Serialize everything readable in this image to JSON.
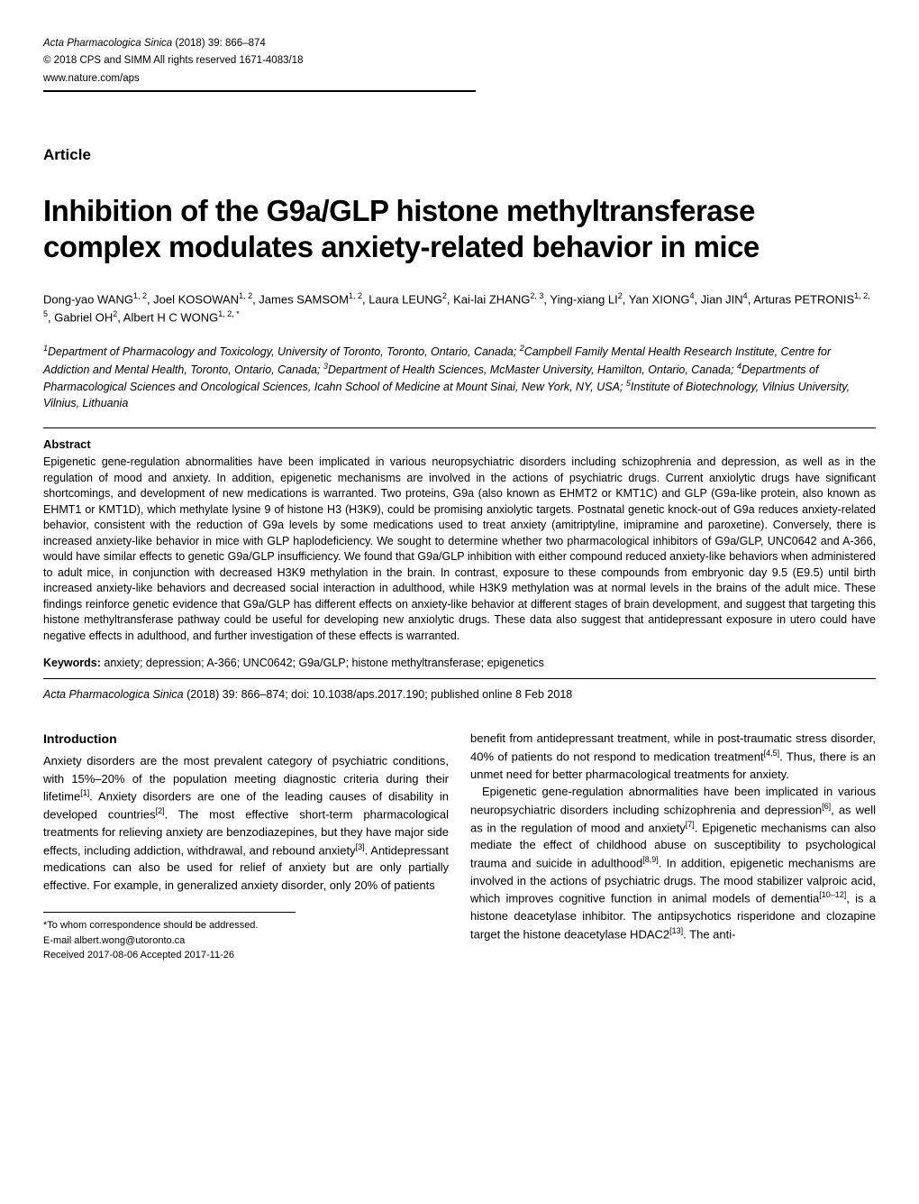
{
  "header": {
    "journal_name": "Acta Pharmacologica Sinica",
    "year_volume_pages": "(2018) 39: 866–874",
    "copyright": "© 2018 CPS and SIMM   All rights reserved 1671-4083/18",
    "website": "www.nature.com/aps"
  },
  "article_label": "Article",
  "title": "Inhibition of the G9a/GLP histone methyltransferase complex modulates anxiety-related behavior in mice",
  "authors_html": "Dong-yao WANG<sup>1, 2</sup>, Joel KOSOWAN<sup>1, 2</sup>, James SAMSOM<sup>1, 2</sup>, Laura LEUNG<sup>2</sup>, Kai-lai ZHANG<sup>2, 3</sup>, Ying-xiang LI<sup>2</sup>, Yan XIONG<sup>4</sup>, Jian JIN<sup>4</sup>, Arturas PETRONIS<sup>1, 2, 5</sup>, Gabriel OH<sup>2</sup>, Albert H C WONG<sup>1, 2, *</sup>",
  "affiliations_html": "<sup>1</sup>Department of Pharmacology and Toxicology, University of Toronto, Toronto, Ontario, Canada; <sup>2</sup>Campbell Family Mental Health Research Institute, Centre for Addiction and Mental Health, Toronto, Ontario, Canada; <sup>3</sup>Department of Health Sciences, McMaster University, Hamilton, Ontario, Canada; <sup>4</sup>Departments of Pharmacological Sciences and Oncological Sciences, Icahn School of Medicine at Mount Sinai, New York, NY, USA; <sup>5</sup>Institute of Biotechnology, Vilnius University, Vilnius, Lithuania",
  "abstract": {
    "label": "Abstract",
    "text": "Epigenetic gene-regulation abnormalities have been implicated in various neuropsychiatric disorders including schizophrenia and depression, as well as in the regulation of mood and anxiety. In addition, epigenetic mechanisms are involved in the actions of psychiatric drugs. Current anxiolytic drugs have significant shortcomings, and development of new medications is warranted. Two proteins, G9a (also known as EHMT2 or KMT1C) and GLP (G9a-like protein, also known as EHMT1 or KMT1D), which methylate lysine 9 of histone H3 (H3K9), could be promising anxiolytic targets. Postnatal genetic knock-out of G9a reduces anxiety-related behavior, consistent with the reduction of G9a levels by some medications used to treat anxiety (amitriptyline, imipramine and paroxetine). Conversely, there is increased anxiety-like behavior in mice with GLP haplodeficiency. We sought to determine whether two pharmacological inhibitors of G9a/GLP, UNC0642 and A-366, would have similar effects to genetic G9a/GLP insufficiency. We found that G9a/GLP inhibition with either compound reduced anxiety-like behaviors when administered to adult mice, in conjunction with decreased H3K9 methylation in the brain. In contrast, exposure to these compounds from embryonic day 9.5 (E9.5) until birth increased anxiety-like behaviors and decreased social interaction in adulthood, while H3K9 methylation was at normal levels in the brains of the adult mice. These findings reinforce genetic evidence that G9a/GLP has different effects on anxiety-like behavior at different stages of brain development, and suggest that targeting this histone methyltransferase pathway could be useful for developing new anxiolytic drugs. These data also suggest that antidepressant exposure in utero could have negative effects in adulthood, and further investigation of these effects is warranted."
  },
  "keywords": {
    "label": "Keywords:",
    "text": " anxiety; depression; A-366; UNC0642; G9a/GLP; histone methyltransferase; epigenetics"
  },
  "citation": {
    "journal": "Acta Pharmacologica Sinica",
    "details": " (2018) 39: 866–874; doi: 10.1038/aps.2017.190; published online 8 Feb 2018"
  },
  "introduction": {
    "label": "Introduction",
    "col1_p1_html": "Anxiety disorders are the most prevalent category of psychiatric conditions, with 15%–20% of the population meeting diagnostic criteria during their lifetime<sup>[1]</sup>. Anxiety disorders are one of the leading causes of disability in developed countries<sup>[2]</sup>. The most effective short-term pharmacological treatments for relieving anxiety are benzodiazepines, but they have major side effects, including addiction, withdrawal, and rebound anxiety<sup>[3]</sup>. Antidepressant medications can also be used for relief of anxiety but are only partially effective. For example, in generalized anxiety disorder, only 20% of patients",
    "col2_p1_html": "benefit from antidepressant treatment, while in post-traumatic stress disorder, 40% of patients do not respond to medication treatment<sup>[4,5]</sup>. Thus, there is an unmet need for better pharmacological treatments for anxiety.",
    "col2_p2_html": "Epigenetic gene-regulation abnormalities have been implicated in various neuropsychiatric disorders including schizophrenia and depression<sup>[6]</sup>, as well as in the regulation of mood and anxiety<sup>[7]</sup>. Epigenetic mechanisms can also mediate the effect of childhood abuse on susceptibility to psychological trauma and suicide in adulthood<sup>[8,9]</sup>. In addition, epigenetic mechanisms are involved in the actions of psychiatric drugs. The mood stabilizer valproic acid, which improves cognitive function in animal models of dementia<sup>[10–12]</sup>, is a histone deacetylase inhibitor. The antipsychotics risperidone and clozapine target the histone deacetylase HDAC2<sup>[13]</sup>. The anti-"
  },
  "footnote": {
    "correspondence": "*To whom correspondence should be addressed.",
    "email": "E-mail albert.wong@utoronto.ca",
    "dates": "Received 2017-08-06    Accepted 2017-11-26"
  }
}
